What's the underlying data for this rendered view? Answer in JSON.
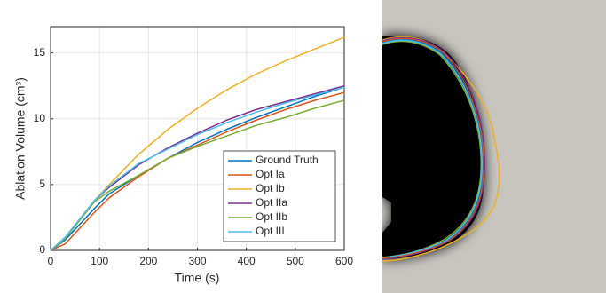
{
  "chart_data": {
    "type": "line",
    "xlabel": "Time (s)",
    "ylabel": "Ablation Volume (cm³)",
    "x": [
      0,
      30,
      60,
      90,
      120,
      180,
      240,
      300,
      360,
      420,
      480,
      540,
      600
    ],
    "series": [
      {
        "name": "Ground Truth",
        "color": "#0072bd",
        "values": [
          0,
          0.8,
          2.0,
          3.2,
          4.3,
          5.7,
          7.0,
          8.2,
          9.2,
          10.1,
          10.9,
          11.7,
          12.4
        ]
      },
      {
        "name": "Opt Ia",
        "color": "#d95319",
        "values": [
          0,
          0.5,
          1.7,
          2.9,
          4.0,
          5.6,
          7.0,
          8.0,
          9.0,
          9.9,
          10.7,
          11.4,
          12.0
        ]
      },
      {
        "name": "Opt Ib",
        "color": "#edb120",
        "values": [
          0,
          1.0,
          2.4,
          3.8,
          5.0,
          7.3,
          9.2,
          10.8,
          12.2,
          13.4,
          14.4,
          15.3,
          16.2
        ]
      },
      {
        "name": "Opt IIa",
        "color": "#7e2f8e",
        "values": [
          0,
          1.0,
          2.4,
          3.8,
          4.8,
          6.5,
          7.8,
          8.9,
          9.9,
          10.7,
          11.3,
          11.9,
          12.5
        ]
      },
      {
        "name": "Opt IIb",
        "color": "#77ac30",
        "values": [
          0,
          0.9,
          2.3,
          3.7,
          4.5,
          5.7,
          7.0,
          7.9,
          8.7,
          9.5,
          10.1,
          10.8,
          11.4
        ]
      },
      {
        "name": "Opt III",
        "color": "#4dbeee",
        "values": [
          0,
          1.0,
          2.4,
          3.8,
          4.9,
          6.6,
          7.7,
          8.8,
          9.7,
          10.5,
          11.2,
          11.8,
          12.4
        ]
      }
    ],
    "xlim": [
      0,
      600
    ],
    "xticks": [
      0,
      100,
      200,
      300,
      400,
      500,
      600
    ],
    "ylim": [
      0,
      17
    ],
    "yticks": [
      0,
      5,
      10,
      15
    ],
    "grid": true,
    "legend": "lower right"
  }
}
